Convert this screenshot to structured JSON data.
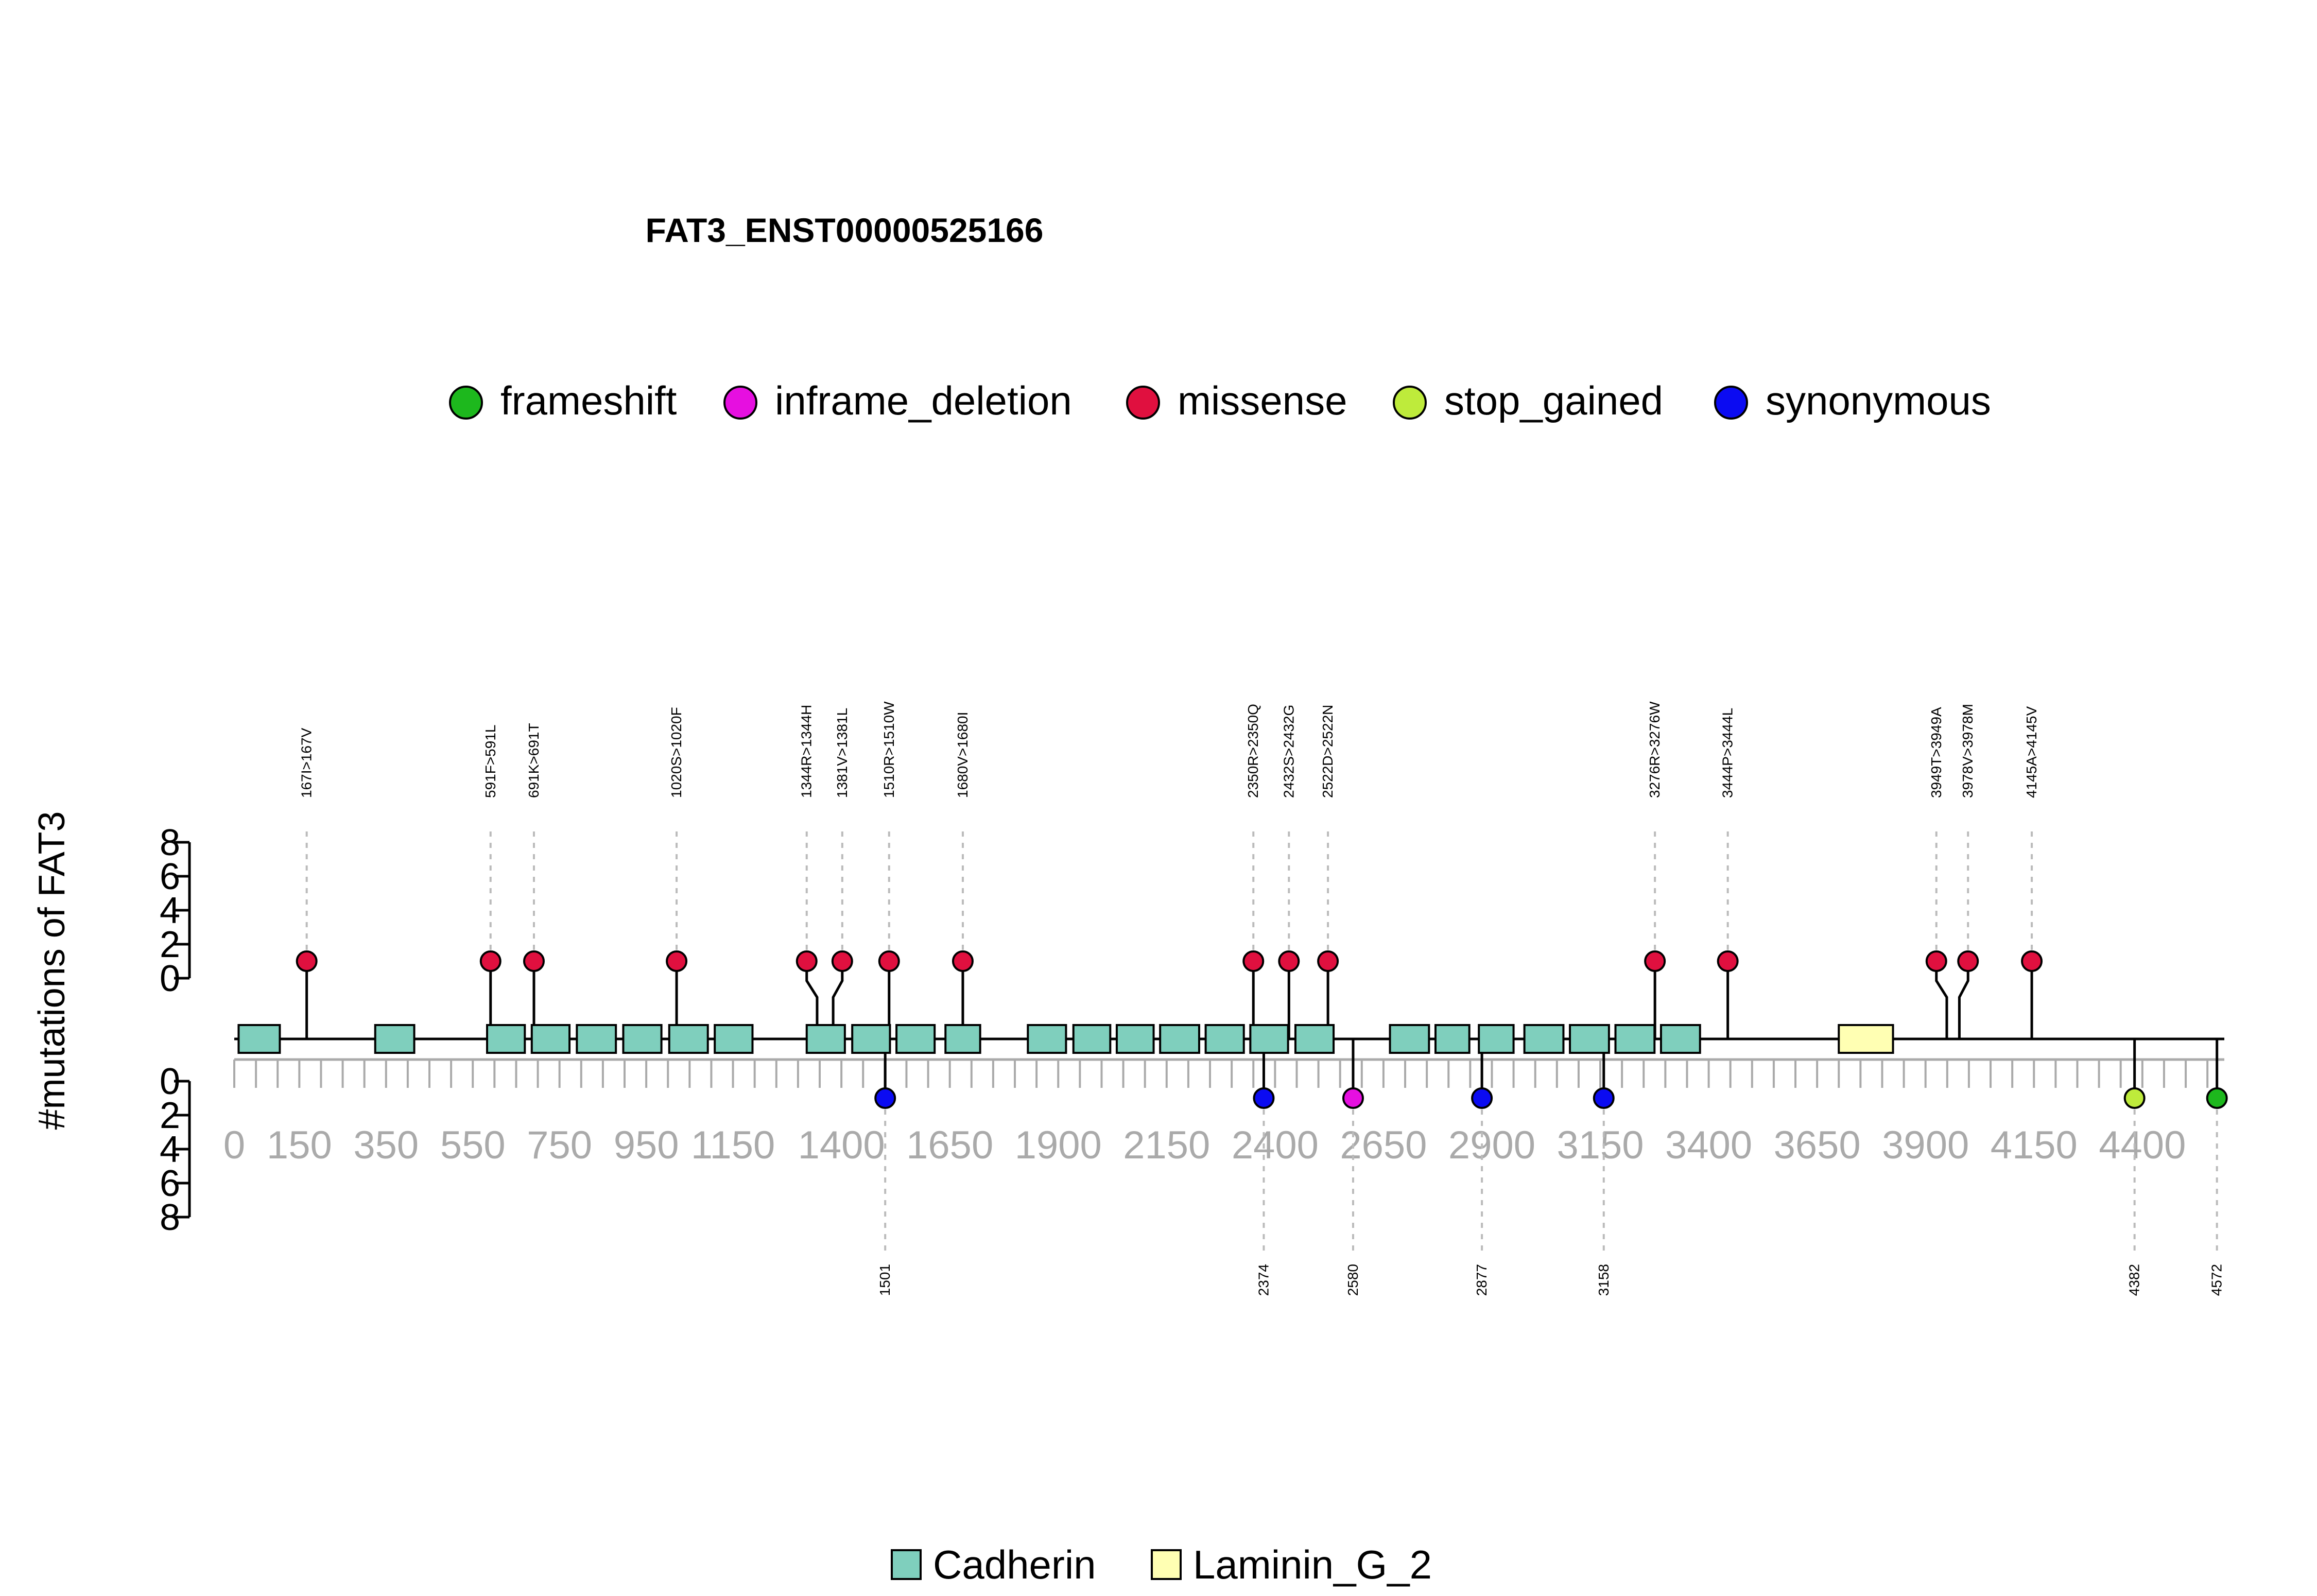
{
  "chart_data": {
    "type": "lollipop",
    "title": "FAT3_ENST00000525166",
    "ylabel": "#mutations of FAT3",
    "protein_length": 4589,
    "xlim": [
      0,
      4589
    ],
    "x_ticks": [
      0,
      150,
      350,
      550,
      750,
      950,
      1150,
      1400,
      1650,
      1900,
      2150,
      2400,
      2650,
      2900,
      3150,
      3400,
      3650,
      3900,
      4150,
      4400
    ],
    "y_upper": {
      "range": [
        0,
        8
      ],
      "ticks": [
        0,
        2,
        4,
        6,
        8
      ]
    },
    "y_lower": {
      "range": [
        0,
        8
      ],
      "ticks": [
        0,
        2,
        4,
        6,
        8
      ]
    },
    "legend_top": [
      {
        "label": "frameshift",
        "color": "#1DB81D"
      },
      {
        "label": "inframe_deletion",
        "color": "#E60FE0"
      },
      {
        "label": "missense",
        "color": "#E0103F"
      },
      {
        "label": "stop_gained",
        "color": "#BEEB3B"
      },
      {
        "label": "synonymous",
        "color": "#0B0BF2"
      }
    ],
    "legend_bottom": [
      {
        "label": "Cadherin",
        "color": "#7FCFBD"
      },
      {
        "label": "Laminin_G_2",
        "color": "#FFFFB3"
      }
    ],
    "domains": [
      {
        "name": "Cadherin",
        "start": 10,
        "end": 105,
        "color": "#7FCFBD"
      },
      {
        "name": "Cadherin",
        "start": 325,
        "end": 415,
        "color": "#7FCFBD"
      },
      {
        "name": "Cadherin",
        "start": 583,
        "end": 670,
        "color": "#7FCFBD"
      },
      {
        "name": "Cadherin",
        "start": 686,
        "end": 773,
        "color": "#7FCFBD"
      },
      {
        "name": "Cadherin",
        "start": 790,
        "end": 880,
        "color": "#7FCFBD"
      },
      {
        "name": "Cadherin",
        "start": 897,
        "end": 985,
        "color": "#7FCFBD"
      },
      {
        "name": "Cadherin",
        "start": 1003,
        "end": 1092,
        "color": "#7FCFBD"
      },
      {
        "name": "Cadherin",
        "start": 1108,
        "end": 1195,
        "color": "#7FCFBD"
      },
      {
        "name": "Cadherin",
        "start": 1320,
        "end": 1408,
        "color": "#7FCFBD"
      },
      {
        "name": "Cadherin",
        "start": 1425,
        "end": 1512,
        "color": "#7FCFBD"
      },
      {
        "name": "Cadherin",
        "start": 1527,
        "end": 1615,
        "color": "#7FCFBD"
      },
      {
        "name": "Cadherin",
        "start": 1640,
        "end": 1720,
        "color": "#7FCFBD"
      },
      {
        "name": "Cadherin",
        "start": 1830,
        "end": 1918,
        "color": "#7FCFBD"
      },
      {
        "name": "Cadherin",
        "start": 1935,
        "end": 2020,
        "color": "#7FCFBD"
      },
      {
        "name": "Cadherin",
        "start": 2035,
        "end": 2120,
        "color": "#7FCFBD"
      },
      {
        "name": "Cadherin",
        "start": 2135,
        "end": 2225,
        "color": "#7FCFBD"
      },
      {
        "name": "Cadherin",
        "start": 2240,
        "end": 2328,
        "color": "#7FCFBD"
      },
      {
        "name": "Cadherin",
        "start": 2343,
        "end": 2430,
        "color": "#7FCFBD"
      },
      {
        "name": "Cadherin",
        "start": 2447,
        "end": 2535,
        "color": "#7FCFBD"
      },
      {
        "name": "Cadherin",
        "start": 2665,
        "end": 2755,
        "color": "#7FCFBD"
      },
      {
        "name": "Cadherin",
        "start": 2770,
        "end": 2848,
        "color": "#7FCFBD"
      },
      {
        "name": "Cadherin",
        "start": 2870,
        "end": 2950,
        "color": "#7FCFBD"
      },
      {
        "name": "Cadherin",
        "start": 2975,
        "end": 3065,
        "color": "#7FCFBD"
      },
      {
        "name": "Cadherin",
        "start": 3080,
        "end": 3170,
        "color": "#7FCFBD"
      },
      {
        "name": "Cadherin",
        "start": 3185,
        "end": 3275,
        "color": "#7FCFBD"
      },
      {
        "name": "Cadherin",
        "start": 3290,
        "end": 3380,
        "color": "#7FCFBD"
      },
      {
        "name": "Laminin_G_2",
        "start": 3700,
        "end": 3825,
        "color": "#FFFFB3"
      }
    ],
    "mutations_upper": [
      {
        "label": "167I>167V",
        "position": 167,
        "label_position": 167,
        "count": 1,
        "type": "missense",
        "color": "#E0103F"
      },
      {
        "label": "591F>591L",
        "position": 591,
        "label_position": 591,
        "count": 1,
        "type": "missense",
        "color": "#E0103F"
      },
      {
        "label": "691K>691T",
        "position": 691,
        "label_position": 691,
        "count": 1,
        "type": "missense",
        "color": "#E0103F"
      },
      {
        "label": "1020S>1020F",
        "position": 1020,
        "label_position": 1020,
        "count": 1,
        "type": "missense",
        "color": "#E0103F"
      },
      {
        "label": "1344R>1344H",
        "position": 1344,
        "label_position": 1320,
        "count": 1,
        "type": "missense",
        "color": "#E0103F"
      },
      {
        "label": "1381V>1381L",
        "position": 1381,
        "label_position": 1402,
        "count": 1,
        "type": "missense",
        "color": "#E0103F"
      },
      {
        "label": "1510R>1510W",
        "position": 1510,
        "label_position": 1510,
        "count": 1,
        "type": "missense",
        "color": "#E0103F"
      },
      {
        "label": "1680V>1680I",
        "position": 1680,
        "label_position": 1680,
        "count": 1,
        "type": "missense",
        "color": "#E0103F"
      },
      {
        "label": "2350R>2350Q",
        "position": 2350,
        "label_position": 2350,
        "count": 1,
        "type": "missense",
        "color": "#E0103F"
      },
      {
        "label": "2432S>2432G",
        "position": 2432,
        "label_position": 2432,
        "count": 1,
        "type": "missense",
        "color": "#E0103F"
      },
      {
        "label": "2522D>2522N",
        "position": 2522,
        "label_position": 2522,
        "count": 1,
        "type": "missense",
        "color": "#E0103F"
      },
      {
        "label": "3276R>3276W",
        "position": 3276,
        "label_position": 3276,
        "count": 1,
        "type": "missense",
        "color": "#E0103F"
      },
      {
        "label": "3444P>3444L",
        "position": 3444,
        "label_position": 3444,
        "count": 1,
        "type": "missense",
        "color": "#E0103F"
      },
      {
        "label": "3949T>3949A",
        "position": 3949,
        "label_position": 3925,
        "count": 1,
        "type": "missense",
        "color": "#E0103F"
      },
      {
        "label": "3978V>3978M",
        "position": 3978,
        "label_position": 3998,
        "count": 1,
        "type": "missense",
        "color": "#E0103F"
      },
      {
        "label": "4145A>4145V",
        "position": 4145,
        "label_position": 4145,
        "count": 1,
        "type": "missense",
        "color": "#E0103F"
      }
    ],
    "mutations_lower": [
      {
        "label": "1501",
        "position": 1501,
        "count": 1,
        "type": "synonymous",
        "color": "#0B0BF2"
      },
      {
        "label": "2374",
        "position": 2374,
        "count": 1,
        "type": "synonymous",
        "color": "#0B0BF2"
      },
      {
        "label": "2580",
        "position": 2580,
        "count": 1,
        "type": "inframe_deletion",
        "color": "#E60FE0"
      },
      {
        "label": "2877",
        "position": 2877,
        "count": 1,
        "type": "synonymous",
        "color": "#0B0BF2"
      },
      {
        "label": "3158",
        "position": 3158,
        "count": 1,
        "type": "synonymous",
        "color": "#0B0BF2"
      },
      {
        "label": "4382",
        "position": 4382,
        "count": 1,
        "type": "stop_gained",
        "color": "#BEEB3B"
      },
      {
        "label": "4572",
        "position": 4572,
        "count": 1,
        "type": "frameshift",
        "color": "#1DB81D"
      }
    ]
  }
}
